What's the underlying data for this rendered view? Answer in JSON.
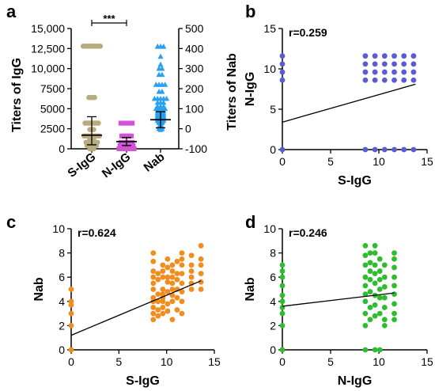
{
  "chart_data": [
    {
      "panel": "a",
      "type": "scatter",
      "categories": [
        "S-IgG",
        "N-IgG",
        "Nab"
      ],
      "ylabel": "Titers of IgG",
      "ylabel_right": "Titers of Nab",
      "ylim": [
        0,
        15000
      ],
      "yticks": [
        "0",
        "2500",
        "5000",
        "7500",
        "10,000",
        "12,500",
        "15,000"
      ],
      "ylim_right": [
        -100,
        500
      ],
      "yticks_right": [
        "-100",
        "0",
        "100",
        "200",
        "300",
        "400",
        "500"
      ],
      "significance": "***",
      "colors": {
        "S-IgG": "#b8ac7e",
        "N-IgG": "#d254d6",
        "Nab": "#2aa0ee"
      },
      "summary": {
        "S-IgG": {
          "mean": 1700,
          "sd_low": 500,
          "sd_high": 4000
        },
        "N-IgG": {
          "mean": 900,
          "sd_low": 400,
          "sd_high": 1400
        },
        "Nab": {
          "mean": 45,
          "sd_low": 5,
          "sd_high": 85
        }
      },
      "points": {
        "S-IgG": [
          12800,
          12800,
          12800,
          12800,
          12800,
          12800,
          12800,
          12800,
          12800,
          12800,
          6400,
          6400,
          6400,
          6400,
          3200,
          3200,
          3200,
          3200,
          3200,
          3200,
          3200,
          3200,
          2400,
          2400,
          2400,
          1600,
          1600,
          1600,
          1600,
          1600,
          1600,
          1600,
          1600,
          1600,
          1200,
          1200,
          1200,
          800,
          800,
          800,
          800,
          800,
          800,
          800,
          400,
          400,
          400,
          400,
          400,
          400,
          200,
          200,
          200,
          100,
          100,
          0,
          0,
          0
        ],
        "N-IgG": [
          3200,
          3200,
          3200,
          3200,
          3200,
          3200,
          3200,
          1600,
          1600,
          1600,
          1600,
          1600,
          1600,
          800,
          800,
          800,
          800,
          800,
          800,
          800,
          400,
          400,
          400,
          400,
          400,
          400,
          400,
          400,
          200,
          200,
          200,
          200,
          200,
          200,
          200,
          200,
          0,
          0,
          0,
          0,
          0,
          0,
          0,
          0,
          0
        ],
        "Nab": [
          410,
          410,
          410,
          360,
          320,
          300,
          300,
          270,
          270,
          220,
          220,
          220,
          220,
          185,
          185,
          150,
          150,
          150,
          150,
          150,
          130,
          130,
          130,
          110,
          110,
          110,
          100,
          100,
          100,
          100,
          90,
          90,
          90,
          80,
          80,
          80,
          75,
          75,
          70,
          70,
          70,
          60,
          60,
          60,
          55,
          55,
          50,
          50,
          50,
          45,
          45,
          40,
          40,
          40,
          35,
          35,
          30,
          30,
          25,
          20,
          15,
          10,
          10,
          5,
          0,
          0,
          -5
        ]
      }
    },
    {
      "panel": "b",
      "type": "scatter",
      "r_label": "r=0.259",
      "xlabel": "S-IgG",
      "ylabel": "N-IgG",
      "xlim": [
        0,
        15
      ],
      "ylim": [
        0,
        15
      ],
      "xticks": [
        "0",
        "5",
        "10",
        "15"
      ],
      "yticks": [
        "0",
        "5",
        "10",
        "15"
      ],
      "color": "#5b5bd6",
      "x": [
        0,
        0,
        0,
        0,
        0,
        8.6,
        9.6,
        10.6,
        11.6,
        12.6,
        13.6,
        8.6,
        9.6,
        10.6,
        11.6,
        12.6,
        13.6,
        8.6,
        9.6,
        10.6,
        11.6,
        12.6,
        13.6,
        8.6,
        9.6,
        10.6,
        11.6,
        12.6,
        13.6,
        8.6,
        9.6,
        10.6,
        11.6,
        12.6,
        13.6
      ],
      "y": [
        11.6,
        10.6,
        9.6,
        8.6,
        0,
        11.6,
        11.6,
        11.6,
        11.6,
        11.6,
        11.6,
        10.6,
        10.6,
        10.6,
        10.6,
        10.6,
        10.6,
        9.6,
        9.6,
        9.6,
        9.6,
        9.6,
        9.6,
        8.6,
        8.6,
        8.6,
        8.6,
        8.6,
        8.6,
        0,
        0,
        0,
        0,
        0,
        0
      ],
      "fit": {
        "x": [
          0,
          13.8
        ],
        "y": [
          3.4,
          8.1
        ]
      }
    },
    {
      "panel": "c",
      "type": "scatter",
      "r_label": "r=0.624",
      "xlabel": "S-IgG",
      "ylabel": "Nab",
      "xlim": [
        0,
        15
      ],
      "ylim": [
        0,
        10
      ],
      "xticks": [
        "0",
        "5",
        "10",
        "15"
      ],
      "yticks": [
        "0",
        "2",
        "4",
        "6",
        "8",
        "10"
      ],
      "color": "#f28c1c",
      "x": [
        0,
        0,
        0,
        0,
        0,
        0,
        8.6,
        8.6,
        8.6,
        8.6,
        8.6,
        8.6,
        8.6,
        8.6,
        8.6,
        8.6,
        8.6,
        9.1,
        9.1,
        9.1,
        9.1,
        9.1,
        9.1,
        9.6,
        9.6,
        9.6,
        9.6,
        9.6,
        9.6,
        9.6,
        9.6,
        9.6,
        10.1,
        10.1,
        10.1,
        10.1,
        10.1,
        10.1,
        10.1,
        10.6,
        10.6,
        10.6,
        10.6,
        10.6,
        10.6,
        10.6,
        10.6,
        11.1,
        11.1,
        11.1,
        11.1,
        11.1,
        11.1,
        11.6,
        11.6,
        11.6,
        11.6,
        11.6,
        11.6,
        11.6,
        11.6,
        12.6,
        12.6,
        12.6,
        12.6,
        12.6,
        12.6,
        13.6,
        13.6,
        13.6,
        13.6,
        13.6,
        13.6
      ],
      "y": [
        5.0,
        4.0,
        3.7,
        3.0,
        2.0,
        0,
        8.0,
        7.3,
        6.5,
        6.0,
        5.5,
        5.0,
        4.3,
        4.0,
        3.5,
        3.0,
        2.5,
        6.3,
        5.8,
        4.6,
        4.0,
        3.3,
        2.8,
        7.0,
        6.5,
        6.0,
        5.0,
        4.6,
        4.3,
        4.0,
        3.5,
        3.0,
        7.5,
        6.8,
        6.0,
        5.6,
        4.8,
        3.8,
        3.2,
        7.0,
        6.5,
        6.0,
        5.5,
        5.0,
        4.5,
        4.0,
        2.5,
        7.3,
        6.3,
        5.8,
        5.0,
        4.3,
        3.3,
        8.0,
        7.5,
        7.0,
        6.3,
        5.5,
        4.8,
        4.0,
        3.0,
        7.8,
        7.0,
        6.5,
        6.0,
        5.5,
        5.0,
        8.6,
        7.5,
        7.0,
        6.3,
        5.6,
        5.0
      ],
      "fit": {
        "x": [
          0,
          13.6
        ],
        "y": [
          1.2,
          5.7
        ]
      }
    },
    {
      "panel": "d",
      "type": "scatter",
      "r_label": "r=0.246",
      "xlabel": "N-IgG",
      "ylabel": "Nab",
      "xlim": [
        0,
        15
      ],
      "ylim": [
        0,
        10
      ],
      "xticks": [
        "0",
        "5",
        "10",
        "15"
      ],
      "yticks": [
        "0",
        "2",
        "4",
        "6",
        "8",
        "10"
      ],
      "color": "#2ebd2e",
      "x": [
        0,
        0,
        0,
        0,
        0,
        0,
        0,
        0,
        0,
        0,
        8.6,
        8.6,
        8.6,
        8.6,
        8.6,
        8.6,
        8.6,
        8.6,
        8.6,
        8.6,
        9.1,
        9.1,
        9.1,
        9.1,
        9.1,
        9.1,
        9.1,
        9.6,
        9.6,
        9.6,
        9.6,
        9.6,
        9.6,
        9.6,
        9.6,
        9.6,
        10.1,
        10.1,
        10.1,
        10.1,
        10.1,
        10.1,
        10.1,
        10.6,
        10.6,
        10.6,
        10.6,
        10.6,
        10.6,
        10.6,
        11.6,
        11.6,
        11.6,
        11.6,
        11.6,
        11.6,
        11.6,
        11.6,
        11.6
      ],
      "y": [
        7.0,
        6.5,
        6.0,
        5.3,
        4.5,
        4.0,
        3.5,
        3.0,
        2.0,
        0,
        8.6,
        7.8,
        7.0,
        6.0,
        5.3,
        4.6,
        4.0,
        3.0,
        2.0,
        0,
        8.0,
        7.2,
        6.5,
        5.8,
        4.8,
        3.5,
        2.5,
        8.6,
        8.0,
        7.0,
        6.3,
        5.5,
        4.5,
        3.7,
        2.8,
        0,
        7.5,
        6.5,
        5.8,
        5.0,
        4.3,
        3.0,
        0,
        7.0,
        6.0,
        5.2,
        4.3,
        3.5,
        2.5,
        2.0,
        8.0,
        7.5,
        6.8,
        6.0,
        5.3,
        4.6,
        3.8,
        3.0,
        2.5
      ],
      "fit": {
        "x": [
          0,
          11.6
        ],
        "y": [
          3.6,
          4.7
        ]
      }
    }
  ]
}
